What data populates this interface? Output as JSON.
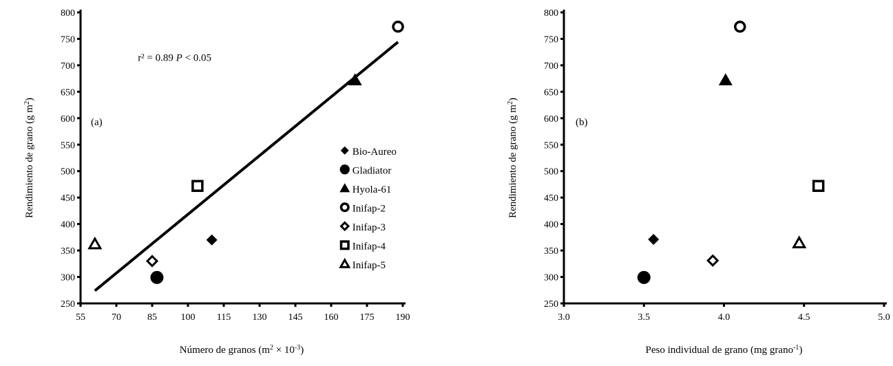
{
  "chart_data": [
    {
      "type": "scatter",
      "panel_label": "(a)",
      "annotation": {
        "r2": "r² = 0.89",
        "p": "P",
        "p_rest": " < 0.05"
      },
      "xlabel": {
        "text": "Número de granos (m",
        "sup1": "2",
        "mid": " × 10",
        "sup2": "-3",
        "end": ")"
      },
      "ylabel": {
        "text": "Rendimiento de grano (g m",
        "sup": "2",
        "end": ")"
      },
      "xlim": [
        55,
        190
      ],
      "ylim": [
        250,
        800
      ],
      "xticks": [
        55,
        70,
        85,
        100,
        115,
        130,
        145,
        160,
        175,
        190
      ],
      "yticks": [
        250,
        300,
        350,
        400,
        450,
        500,
        550,
        600,
        650,
        700,
        750,
        800
      ],
      "series": [
        {
          "name": "Bio-Aureo",
          "marker": "diamond-filled",
          "points": [
            [
              110,
              370
            ]
          ]
        },
        {
          "name": "Gladiator",
          "marker": "circle-filled",
          "points": [
            [
              87,
              299
            ]
          ]
        },
        {
          "name": "Hyola-61",
          "marker": "triangle-filled",
          "points": [
            [
              170,
              672
            ]
          ]
        },
        {
          "name": "Inifap-2",
          "marker": "circle-open",
          "points": [
            [
              188,
              773
            ]
          ]
        },
        {
          "name": "Inifap-3",
          "marker": "diamond-open",
          "points": [
            [
              85,
              330
            ]
          ]
        },
        {
          "name": "Inifap-4",
          "marker": "square-open",
          "points": [
            [
              104,
              472
            ]
          ]
        },
        {
          "name": "Inifap-5",
          "marker": "triangle-open",
          "points": [
            [
              61,
              362
            ]
          ]
        }
      ],
      "trendline": {
        "from": [
          61,
          274
        ],
        "to": [
          188,
          744
        ]
      },
      "legend": [
        "Bio-Aureo",
        "Gladiator",
        "Hyola-61",
        "Inifap-2",
        "Inifap-3",
        "Inifap-4",
        "Inifap-5"
      ]
    },
    {
      "type": "scatter",
      "panel_label": "(b)",
      "xlabel": {
        "text": "Peso individual de grano (mg grano",
        "sup": "-1",
        "end": ")"
      },
      "ylabel": {
        "text": "Rendimiento de grano (g m",
        "sup": "2",
        "end": ")"
      },
      "xlim": [
        3.0,
        5.0
      ],
      "ylim": [
        250,
        800
      ],
      "xticks": [
        "3.0",
        "3.5",
        "4.0",
        "4.5",
        "5.0"
      ],
      "yticks": [
        250,
        300,
        350,
        400,
        450,
        500,
        550,
        600,
        650,
        700,
        750,
        800
      ],
      "series": [
        {
          "name": "Bio-Aureo",
          "marker": "diamond-filled",
          "points": [
            [
              3.56,
              371
            ]
          ]
        },
        {
          "name": "Gladiator",
          "marker": "circle-filled",
          "points": [
            [
              3.5,
              299
            ]
          ]
        },
        {
          "name": "Hyola-61",
          "marker": "triangle-filled",
          "points": [
            [
              4.01,
              672
            ]
          ]
        },
        {
          "name": "Inifap-2",
          "marker": "circle-open",
          "points": [
            [
              4.1,
              773
            ]
          ]
        },
        {
          "name": "Inifap-3",
          "marker": "diamond-open",
          "points": [
            [
              3.93,
              331
            ]
          ]
        },
        {
          "name": "Inifap-4",
          "marker": "square-open",
          "points": [
            [
              4.59,
              472
            ]
          ]
        },
        {
          "name": "Inifap-5",
          "marker": "triangle-open",
          "points": [
            [
              4.47,
              364
            ]
          ]
        }
      ]
    }
  ]
}
